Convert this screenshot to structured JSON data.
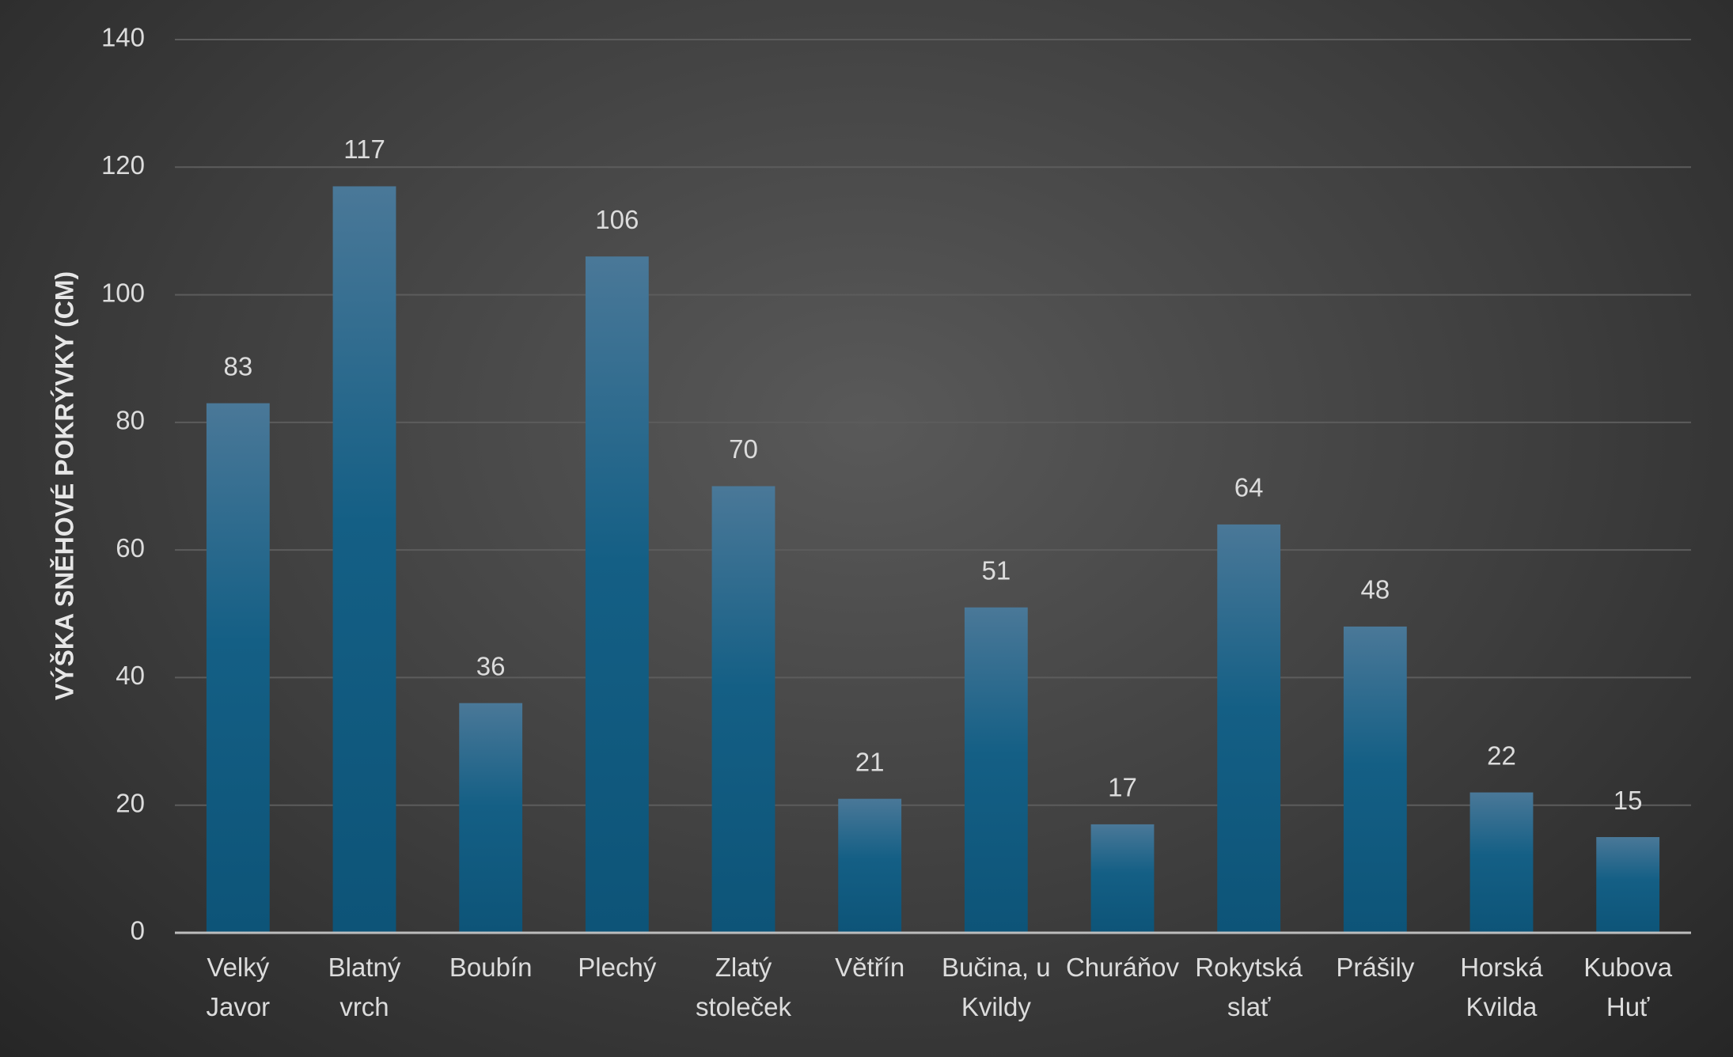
{
  "chart_data": {
    "type": "bar",
    "y_axis_label": "VÝŠKA SNĚHOVÉ POKRÝVKY (CM)",
    "categories": [
      "Velký Javor",
      "Blatný vrch",
      "Boubín",
      "Plechý",
      "Zlatý stoleček",
      "Větřín",
      "Bučina, u Kvildy",
      "Churáňov",
      "Rokytská slať",
      "Prášily",
      "Horská Kvilda",
      "Kubova Huť"
    ],
    "values": [
      83,
      117,
      36,
      106,
      70,
      21,
      51,
      17,
      64,
      48,
      22,
      15
    ],
    "color": "#0f5a80",
    "ylim": [
      0,
      140
    ],
    "yticks": [
      0,
      20,
      40,
      60,
      80,
      100,
      120,
      140
    ],
    "grid": true
  }
}
